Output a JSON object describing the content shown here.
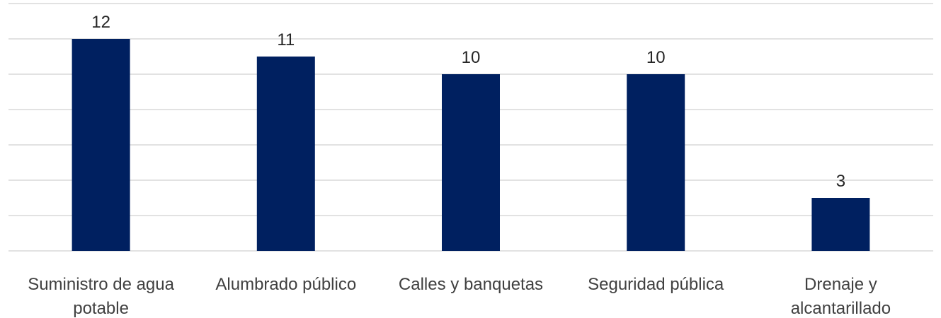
{
  "chart_data": {
    "type": "bar",
    "categories": [
      "Suministro de agua potable",
      "Alumbrado público",
      "Calles y banquetas",
      "Seguridad pública",
      "Drenaje y alcantarillado"
    ],
    "category_lines": [
      [
        "Suministro de agua",
        "potable"
      ],
      [
        "Alumbrado público"
      ],
      [
        "Calles y banquetas"
      ],
      [
        "Seguridad pública"
      ],
      [
        "Drenaje y",
        "alcantarillado"
      ]
    ],
    "values": [
      12,
      11,
      10,
      10,
      3
    ],
    "ylim": [
      0,
      14
    ],
    "grid": true,
    "legend": false,
    "colors": {
      "bar": "#002060",
      "grid": "#d9d9d9"
    }
  }
}
